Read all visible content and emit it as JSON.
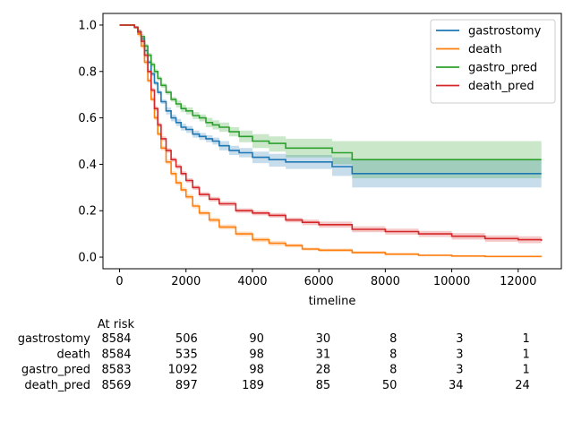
{
  "chart_data": {
    "type": "line",
    "xlabel": "timeline",
    "ylabel": "",
    "xlim": [
      -500,
      13300
    ],
    "ylim": [
      -0.05,
      1.05
    ],
    "xticks": [
      0,
      2000,
      4000,
      6000,
      8000,
      10000,
      12000
    ],
    "yticks": [
      0.0,
      0.2,
      0.4,
      0.6,
      0.8,
      1.0
    ],
    "grid": false,
    "legend_position": "top-right",
    "series": [
      {
        "name": "gastrostomy",
        "color": "#1f77b4",
        "x": [
          0,
          300,
          450,
          550,
          650,
          750,
          850,
          950,
          1050,
          1150,
          1250,
          1400,
          1550,
          1700,
          1850,
          2000,
          2200,
          2400,
          2600,
          2800,
          3000,
          3300,
          3600,
          4000,
          4500,
          5000,
          6400,
          7000,
          12700
        ],
        "y": [
          1.0,
          1.0,
          0.99,
          0.97,
          0.94,
          0.89,
          0.84,
          0.79,
          0.75,
          0.71,
          0.67,
          0.63,
          0.6,
          0.58,
          0.56,
          0.55,
          0.53,
          0.52,
          0.51,
          0.5,
          0.48,
          0.46,
          0.45,
          0.43,
          0.42,
          0.41,
          0.39,
          0.36,
          0.36
        ],
        "ci_upper": [
          1.0,
          1.0,
          0.995,
          0.98,
          0.95,
          0.9,
          0.85,
          0.8,
          0.76,
          0.72,
          0.68,
          0.645,
          0.615,
          0.595,
          0.575,
          0.565,
          0.545,
          0.535,
          0.525,
          0.515,
          0.5,
          0.48,
          0.47,
          0.455,
          0.445,
          0.44,
          0.43,
          0.42,
          0.42
        ],
        "ci_lower": [
          1.0,
          1.0,
          0.985,
          0.96,
          0.93,
          0.88,
          0.83,
          0.78,
          0.74,
          0.7,
          0.66,
          0.615,
          0.585,
          0.565,
          0.545,
          0.535,
          0.515,
          0.505,
          0.495,
          0.485,
          0.46,
          0.44,
          0.43,
          0.405,
          0.39,
          0.38,
          0.35,
          0.3,
          0.3
        ]
      },
      {
        "name": "death",
        "color": "#ff7f0e",
        "x": [
          0,
          300,
          450,
          550,
          650,
          750,
          850,
          950,
          1050,
          1150,
          1250,
          1400,
          1550,
          1700,
          1850,
          2000,
          2200,
          2400,
          2700,
          3000,
          3500,
          4000,
          4500,
          5000,
          5500,
          6000,
          7000,
          8000,
          9000,
          10000,
          11000,
          12700
        ],
        "y": [
          1.0,
          1.0,
          0.99,
          0.96,
          0.91,
          0.84,
          0.76,
          0.68,
          0.6,
          0.53,
          0.47,
          0.41,
          0.36,
          0.32,
          0.29,
          0.26,
          0.22,
          0.19,
          0.16,
          0.13,
          0.1,
          0.075,
          0.06,
          0.05,
          0.035,
          0.03,
          0.02,
          0.013,
          0.008,
          0.005,
          0.003,
          0.002
        ],
        "ci_upper": [
          1.0,
          1.0,
          0.995,
          0.97,
          0.92,
          0.85,
          0.77,
          0.69,
          0.61,
          0.54,
          0.48,
          0.42,
          0.37,
          0.33,
          0.3,
          0.27,
          0.23,
          0.2,
          0.17,
          0.14,
          0.11,
          0.085,
          0.07,
          0.058,
          0.042,
          0.037,
          0.026,
          0.018,
          0.012,
          0.009,
          0.006,
          0.005
        ],
        "ci_lower": [
          1.0,
          1.0,
          0.985,
          0.95,
          0.9,
          0.83,
          0.75,
          0.67,
          0.59,
          0.52,
          0.46,
          0.4,
          0.35,
          0.31,
          0.28,
          0.25,
          0.21,
          0.18,
          0.15,
          0.12,
          0.09,
          0.065,
          0.05,
          0.042,
          0.028,
          0.023,
          0.014,
          0.008,
          0.004,
          0.002,
          0.001,
          0.0
        ]
      },
      {
        "name": "gastro_pred",
        "color": "#2ca02c",
        "x": [
          0,
          300,
          450,
          550,
          650,
          750,
          850,
          950,
          1050,
          1150,
          1250,
          1400,
          1550,
          1700,
          1850,
          2000,
          2200,
          2400,
          2600,
          2800,
          3000,
          3300,
          3600,
          4000,
          4500,
          5000,
          6400,
          7000,
          12700
        ],
        "y": [
          1.0,
          1.0,
          0.99,
          0.97,
          0.95,
          0.91,
          0.87,
          0.83,
          0.8,
          0.77,
          0.74,
          0.71,
          0.68,
          0.66,
          0.64,
          0.63,
          0.61,
          0.6,
          0.58,
          0.57,
          0.56,
          0.54,
          0.52,
          0.5,
          0.49,
          0.47,
          0.45,
          0.42,
          0.42
        ],
        "ci_upper": [
          1.0,
          1.0,
          0.995,
          0.98,
          0.96,
          0.92,
          0.88,
          0.84,
          0.81,
          0.78,
          0.75,
          0.72,
          0.69,
          0.675,
          0.655,
          0.645,
          0.625,
          0.615,
          0.6,
          0.59,
          0.58,
          0.56,
          0.545,
          0.53,
          0.52,
          0.51,
          0.5,
          0.5,
          0.5
        ],
        "ci_lower": [
          1.0,
          1.0,
          0.985,
          0.96,
          0.94,
          0.9,
          0.86,
          0.82,
          0.79,
          0.76,
          0.73,
          0.7,
          0.67,
          0.645,
          0.625,
          0.615,
          0.595,
          0.585,
          0.56,
          0.55,
          0.54,
          0.52,
          0.495,
          0.47,
          0.455,
          0.43,
          0.4,
          0.34,
          0.34
        ]
      },
      {
        "name": "death_pred",
        "color": "#d62728",
        "x": [
          0,
          300,
          450,
          550,
          650,
          750,
          850,
          950,
          1050,
          1150,
          1250,
          1400,
          1550,
          1700,
          1850,
          2000,
          2200,
          2400,
          2700,
          3000,
          3500,
          4000,
          4500,
          5000,
          5500,
          6000,
          7000,
          8000,
          9000,
          10000,
          11000,
          12000,
          12700
        ],
        "y": [
          1.0,
          1.0,
          0.99,
          0.97,
          0.93,
          0.87,
          0.8,
          0.72,
          0.64,
          0.57,
          0.51,
          0.46,
          0.42,
          0.39,
          0.36,
          0.33,
          0.3,
          0.27,
          0.25,
          0.23,
          0.2,
          0.19,
          0.18,
          0.16,
          0.15,
          0.14,
          0.12,
          0.11,
          0.1,
          0.09,
          0.08,
          0.075,
          0.07
        ],
        "ci_upper": [
          1.0,
          1.0,
          0.995,
          0.98,
          0.94,
          0.88,
          0.81,
          0.73,
          0.65,
          0.58,
          0.52,
          0.47,
          0.43,
          0.4,
          0.37,
          0.34,
          0.31,
          0.28,
          0.26,
          0.24,
          0.21,
          0.2,
          0.19,
          0.17,
          0.162,
          0.153,
          0.133,
          0.123,
          0.113,
          0.104,
          0.094,
          0.09,
          0.09
        ],
        "ci_lower": [
          1.0,
          1.0,
          0.985,
          0.96,
          0.92,
          0.86,
          0.79,
          0.71,
          0.63,
          0.56,
          0.5,
          0.45,
          0.41,
          0.38,
          0.35,
          0.32,
          0.29,
          0.26,
          0.24,
          0.22,
          0.19,
          0.18,
          0.17,
          0.15,
          0.138,
          0.127,
          0.107,
          0.097,
          0.087,
          0.076,
          0.066,
          0.06,
          0.055
        ]
      }
    ],
    "at_risk": {
      "title": "At risk",
      "times": [
        0,
        2000,
        4000,
        6000,
        8000,
        10000,
        12000
      ],
      "rows": [
        {
          "name": "gastrostomy",
          "counts": [
            "8584",
            "506",
            "90",
            "30",
            "8",
            "3",
            "1"
          ]
        },
        {
          "name": "death",
          "counts": [
            "8584",
            "535",
            "98",
            "31",
            "8",
            "3",
            "1"
          ]
        },
        {
          "name": "gastro_pred",
          "counts": [
            "8583",
            "1092",
            "98",
            "28",
            "8",
            "3",
            "1"
          ]
        },
        {
          "name": "death_pred",
          "counts": [
            "8569",
            "897",
            "189",
            "85",
            "50",
            "34",
            "24"
          ]
        }
      ]
    }
  }
}
